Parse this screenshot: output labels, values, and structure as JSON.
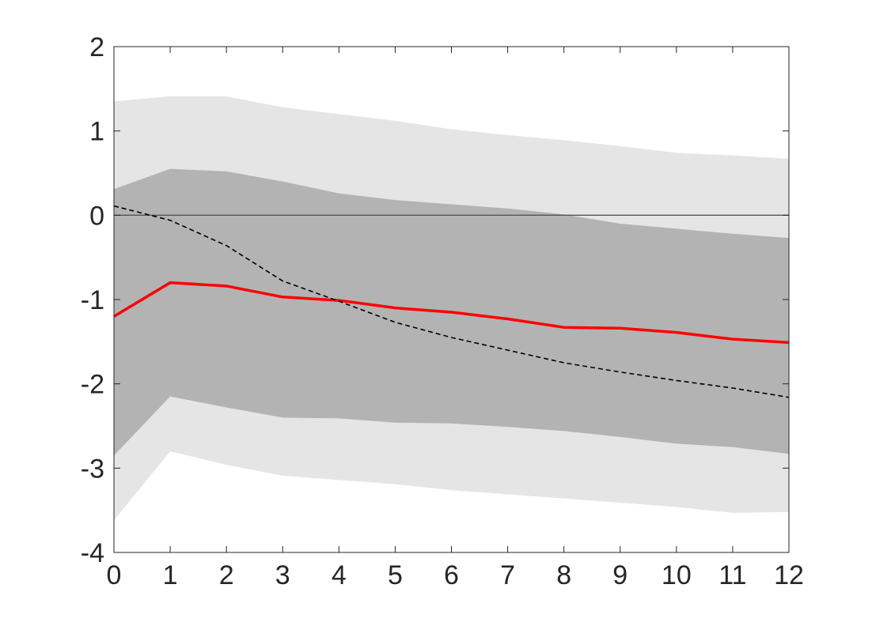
{
  "chart_data": {
    "type": "line",
    "title": "",
    "xlabel": "",
    "ylabel": "",
    "xlim": [
      0,
      12
    ],
    "ylim": [
      -4,
      2
    ],
    "grid": false,
    "x": [
      0,
      1,
      2,
      3,
      4,
      5,
      6,
      7,
      8,
      9,
      10,
      11,
      12
    ],
    "x_ticks": [
      "0",
      "1",
      "2",
      "3",
      "4",
      "5",
      "6",
      "7",
      "8",
      "9",
      "10",
      "11",
      "12"
    ],
    "y_ticks": [
      "2",
      "1",
      "0",
      "-1",
      "-2",
      "-3",
      "-4"
    ],
    "y_tick_values": [
      2,
      1,
      0,
      -1,
      -2,
      -3,
      -4
    ],
    "bands": [
      {
        "fill": "#e5e5e5",
        "upper": [
          1.35,
          1.41,
          1.41,
          1.28,
          1.2,
          1.12,
          1.02,
          0.95,
          0.89,
          0.82,
          0.74,
          0.71,
          0.67
        ],
        "lower": [
          -3.62,
          -2.8,
          -2.96,
          -3.09,
          -3.14,
          -3.19,
          -3.26,
          -3.31,
          -3.36,
          -3.41,
          -3.46,
          -3.53,
          -3.52
        ]
      },
      {
        "fill": "#b3b3b3",
        "upper": [
          0.31,
          0.55,
          0.52,
          0.4,
          0.26,
          0.18,
          0.13,
          0.08,
          0.01,
          -0.1,
          -0.16,
          -0.22,
          -0.27
        ],
        "lower": [
          -2.85,
          -2.15,
          -2.28,
          -2.4,
          -2.41,
          -2.46,
          -2.47,
          -2.51,
          -2.56,
          -2.63,
          -2.71,
          -2.75,
          -2.83
        ]
      }
    ],
    "series": [
      {
        "values": [
          -1.2,
          -0.8,
          -0.84,
          -0.97,
          -1.01,
          -1.1,
          -1.15,
          -1.23,
          -1.33,
          -1.34,
          -1.39,
          -1.47,
          -1.51
        ],
        "color": "#ff0000",
        "style": "solid"
      },
      {
        "values": [
          0.11,
          -0.06,
          -0.36,
          -0.78,
          -1.02,
          -1.27,
          -1.45,
          -1.6,
          -1.75,
          -1.86,
          -1.96,
          -2.05,
          -2.16
        ],
        "color": "#000000",
        "style": "dashed"
      }
    ],
    "reference_line": {
      "y": 0,
      "color": "#555555"
    }
  }
}
